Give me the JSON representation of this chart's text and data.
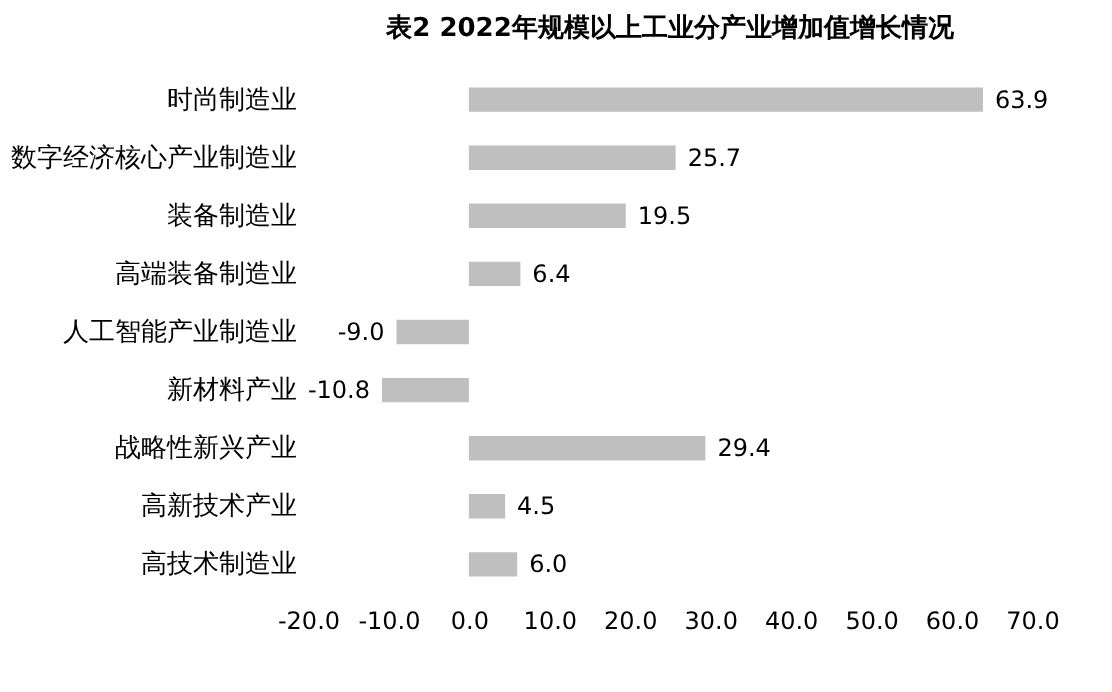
{
  "chart_data": {
    "type": "bar",
    "orientation": "horizontal",
    "title": "表2  2022年规模以上工业分产业增加值增长情况",
    "categories": [
      "时尚制造业",
      "数字经济核心产业制造业",
      "装备制造业",
      "高端装备制造业",
      "人工智能产业制造业",
      "新材料产业",
      "战略性新兴产业",
      "高新技术产业",
      "高技术制造业"
    ],
    "values": [
      63.9,
      25.7,
      19.5,
      6.4,
      -9.0,
      -10.8,
      29.4,
      4.5,
      6.0
    ],
    "value_labels": [
      "63.9",
      "25.7",
      "19.5",
      "6.4",
      "-9.0",
      "-10.8",
      "29.4",
      "4.5",
      "6.0"
    ],
    "color": "#bfbfbf",
    "xlim": [
      -20,
      70
    ],
    "xticks": [
      {
        "value": -20,
        "label": "-20.0"
      },
      {
        "value": -10,
        "label": "-10.0"
      },
      {
        "value": 0,
        "label": "0.0"
      },
      {
        "value": 10,
        "label": "10.0"
      },
      {
        "value": 20,
        "label": "20.0"
      },
      {
        "value": 30,
        "label": "30.0"
      },
      {
        "value": 40,
        "label": "40.0"
      },
      {
        "value": 50,
        "label": "50.0"
      },
      {
        "value": 60,
        "label": "60.0"
      },
      {
        "value": 70,
        "label": "70.0"
      }
    ],
    "grid": false
  }
}
